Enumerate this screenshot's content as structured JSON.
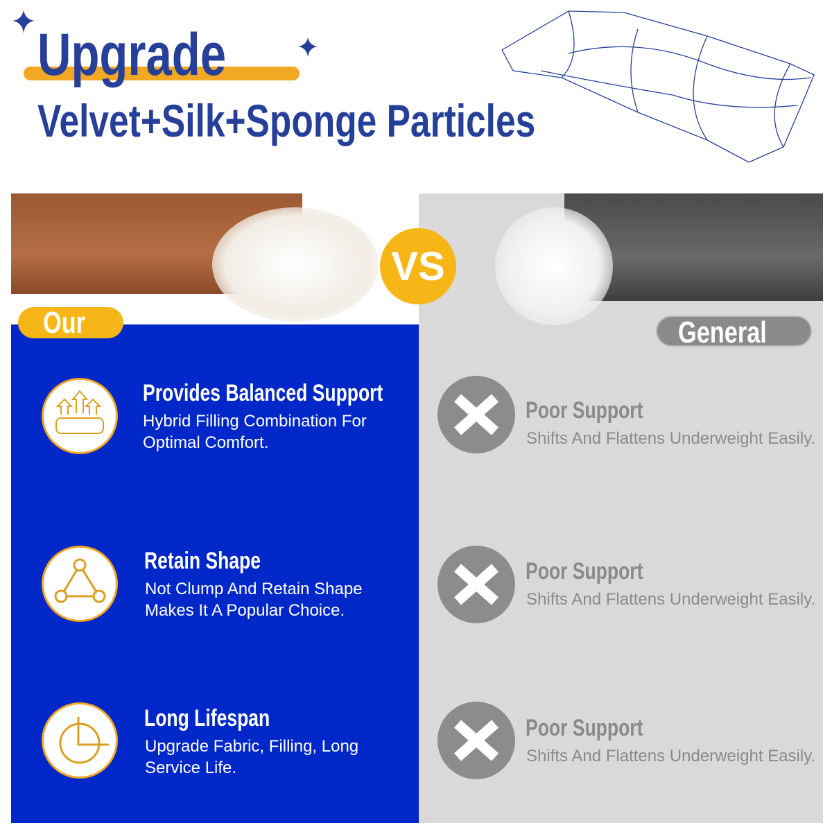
{
  "header": {
    "title": "Upgrade",
    "subtitle": "Velvet+Silk+Sponge Particles"
  },
  "colors": {
    "brand_blue": "#26409a",
    "panel_blue": "#0028c8",
    "accent_yellow": "#f7b617",
    "general_gray": "#8a8a8a"
  },
  "vs_label": "VS",
  "our": {
    "label": "Our",
    "features": [
      {
        "icon": "support-arrows-icon",
        "title": "Provides Balanced Support",
        "desc": [
          "Hybrid Filling Combination For",
          "Optimal Comfort."
        ]
      },
      {
        "icon": "triangle-nodes-icon",
        "title": "Retain Shape",
        "desc": [
          "Not Clump And Retain Shape",
          "Makes It A Popular Choice."
        ]
      },
      {
        "icon": "clock-lifespan-icon",
        "title": "Long Lifespan",
        "desc": [
          "Upgrade Fabric, Filling, Long",
          "Service Life."
        ]
      }
    ]
  },
  "general": {
    "label": "General",
    "features": [
      {
        "icon": "x-icon",
        "title": "Poor Support",
        "desc": "Shifts And Flattens Underweight Easily."
      },
      {
        "icon": "x-icon",
        "title": "Poor Support",
        "desc": "Shifts And Flattens Underweight Easily."
      },
      {
        "icon": "x-icon",
        "title": "Poor Support",
        "desc": "Shifts And Flattens Underweight Easily."
      }
    ]
  }
}
